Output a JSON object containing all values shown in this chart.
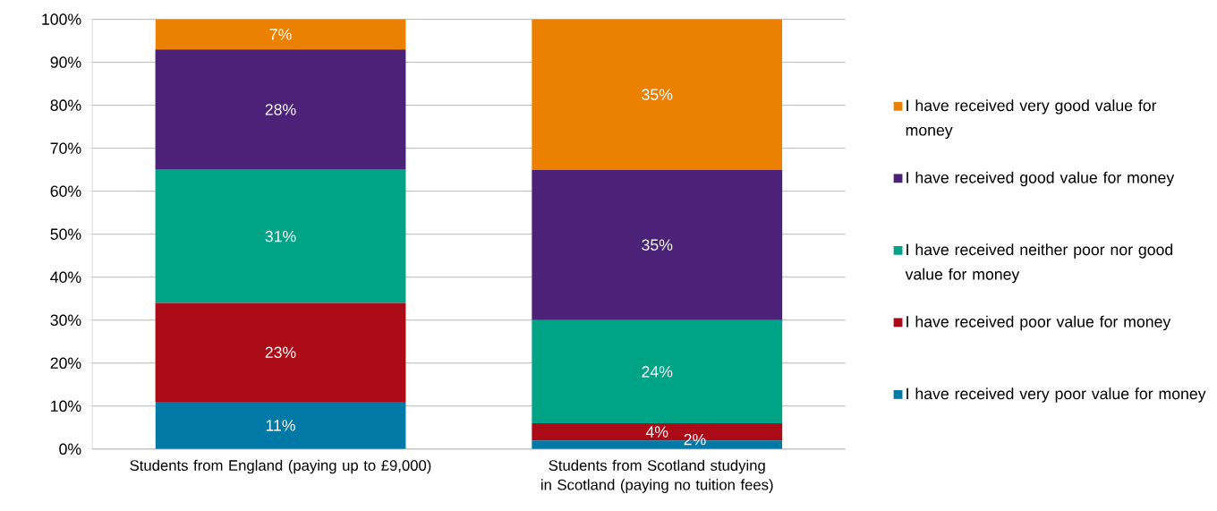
{
  "chart_data": {
    "type": "bar",
    "stacked": true,
    "categories": [
      "Students from England (paying up to £9,000)",
      "Students from Scotland studying in Scotland (paying no tuition fees)"
    ],
    "series": [
      {
        "name": "I have received very poor value for money",
        "color": "#0079a6",
        "values": [
          11,
          2
        ],
        "value_labels": [
          "11%",
          "2%"
        ]
      },
      {
        "name": "I have received poor value for money",
        "color": "#ab0a17",
        "values": [
          23,
          4
        ],
        "value_labels": [
          "23%",
          "4%"
        ]
      },
      {
        "name": "I have received neither poor nor good value for money",
        "color": "#00a385",
        "values": [
          31,
          24
        ],
        "value_labels": [
          "31%",
          "24%"
        ]
      },
      {
        "name": "I have received good value for money",
        "color": "#4b2278",
        "values": [
          28,
          35
        ],
        "value_labels": [
          "28%",
          "35%"
        ]
      },
      {
        "name": "I have received very good value for money",
        "color": "#ec8000",
        "values": [
          7,
          35
        ],
        "value_labels": [
          "7%",
          "35%"
        ]
      }
    ],
    "ylim": [
      0,
      100
    ],
    "yticks": [
      {
        "value": 0,
        "label": "0%"
      },
      {
        "value": 10,
        "label": "10%"
      },
      {
        "value": 20,
        "label": "20%"
      },
      {
        "value": 30,
        "label": "30%"
      },
      {
        "value": 40,
        "label": "40%"
      },
      {
        "value": 50,
        "label": "50%"
      },
      {
        "value": 60,
        "label": "60%"
      },
      {
        "value": 70,
        "label": "70%"
      },
      {
        "value": 80,
        "label": "80%"
      },
      {
        "value": 90,
        "label": "90%"
      },
      {
        "value": 100,
        "label": "100%"
      }
    ],
    "grid": "y",
    "legend": "right"
  }
}
